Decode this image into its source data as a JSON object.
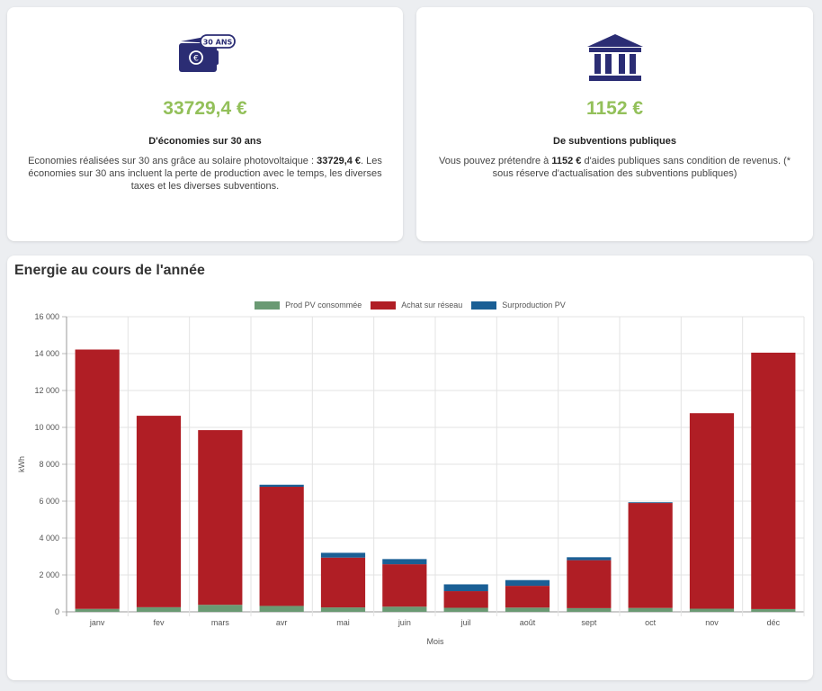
{
  "savings": {
    "amount": "33729,4 €",
    "badge": "30 ANS",
    "title": "D'économies sur 30 ans",
    "text_before": "Economies réalisées sur 30 ans grâce au solaire photovoltaique : ",
    "text_bold": "33729,4 €",
    "text_after": ". Les économies sur 30 ans incluent la perte de production avec le temps, les diverses taxes et les diverses subventions.",
    "icon": "euro-wallet-icon"
  },
  "subsidies": {
    "amount": "1152 €",
    "title": "De subventions publiques",
    "text_before": "Vous pouvez prétendre à ",
    "text_bold": "1152 €",
    "text_after": " d'aides publiques sans condition de revenus. (* sous réserve d'actualisation des subventions publiques)",
    "icon": "bank-building-icon"
  },
  "chart_section": {
    "title": "Energie au cours de l'année"
  },
  "colors": {
    "green": "#6a9a73",
    "red": "#b01e25",
    "blue": "#1a5f95",
    "accent": "#93c05a",
    "navy": "#2b2d74"
  },
  "chart_data": {
    "type": "bar",
    "stacked": true,
    "categories": [
      "janv",
      "fev",
      "mars",
      "avr",
      "mai",
      "juin",
      "juil",
      "août",
      "sept",
      "oct",
      "nov",
      "déc"
    ],
    "series": [
      {
        "name": "Prod PV consommée",
        "color": "#6a9a73",
        "values": [
          160,
          250,
          380,
          320,
          240,
          280,
          220,
          230,
          200,
          210,
          170,
          150
        ]
      },
      {
        "name": "Achat sur réseau",
        "color": "#b01e25",
        "values": [
          14060,
          10380,
          9470,
          6460,
          2700,
          2300,
          900,
          1180,
          2600,
          5690,
          10600,
          13900
        ]
      },
      {
        "name": "Surproduction PV",
        "color": "#1a5f95",
        "values": [
          0,
          0,
          0,
          110,
          260,
          280,
          370,
          310,
          160,
          40,
          0,
          0
        ]
      }
    ],
    "xlabel": "Mois",
    "ylabel": "kWh",
    "ylim": [
      0,
      16000
    ],
    "yticks": [
      "0",
      "2 000",
      "4 000",
      "6 000",
      "8 000",
      "10 000",
      "12 000",
      "14 000",
      "16 000"
    ],
    "grid": true,
    "legend_position": "top-center"
  }
}
